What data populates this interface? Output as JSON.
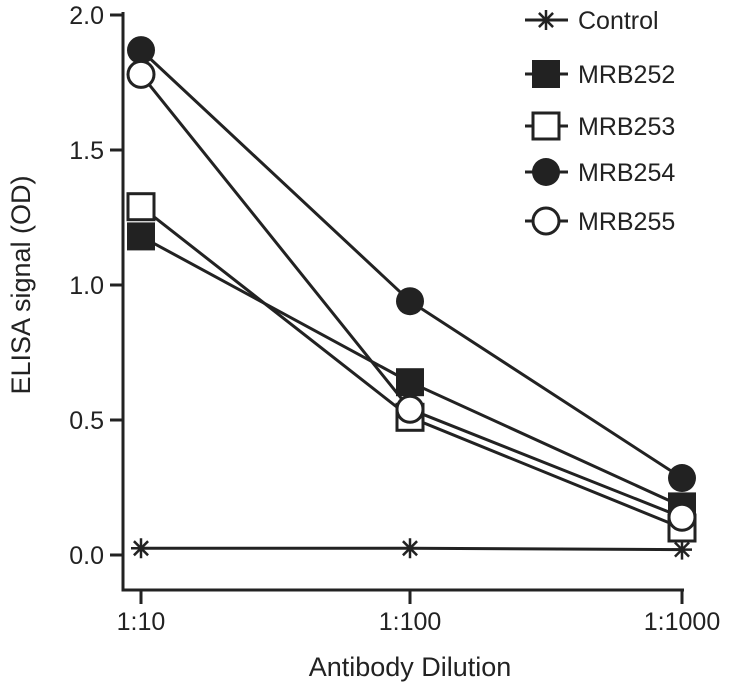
{
  "chart_data": {
    "type": "line",
    "title": "",
    "xlabel": "Antibody Dilution",
    "ylabel": "ELISA signal (OD)",
    "categories": [
      "1:10",
      "1:100",
      "1:1000"
    ],
    "ylim": [
      0,
      2.0
    ],
    "yticks": [
      "0.0",
      "0.5",
      "1.0",
      "1.5",
      "2.0"
    ],
    "ytick_values": [
      0,
      0.5,
      1.0,
      1.5,
      2.0
    ],
    "grid": false,
    "legend_position": "top-right",
    "series": [
      {
        "name": "Control",
        "marker": "asterisk",
        "values": [
          0.025,
          0.025,
          0.02
        ]
      },
      {
        "name": "MRB252",
        "marker": "filled-square",
        "values": [
          1.18,
          0.64,
          0.18
        ]
      },
      {
        "name": "MRB253",
        "marker": "open-square",
        "values": [
          1.29,
          0.51,
          0.1
        ]
      },
      {
        "name": "MRB254",
        "marker": "filled-circle",
        "values": [
          1.87,
          0.94,
          0.285
        ]
      },
      {
        "name": "MRB255",
        "marker": "open-circle",
        "values": [
          1.78,
          0.54,
          0.14
        ]
      }
    ],
    "colors": {
      "ink": "#222222",
      "background": "#ffffff"
    }
  }
}
